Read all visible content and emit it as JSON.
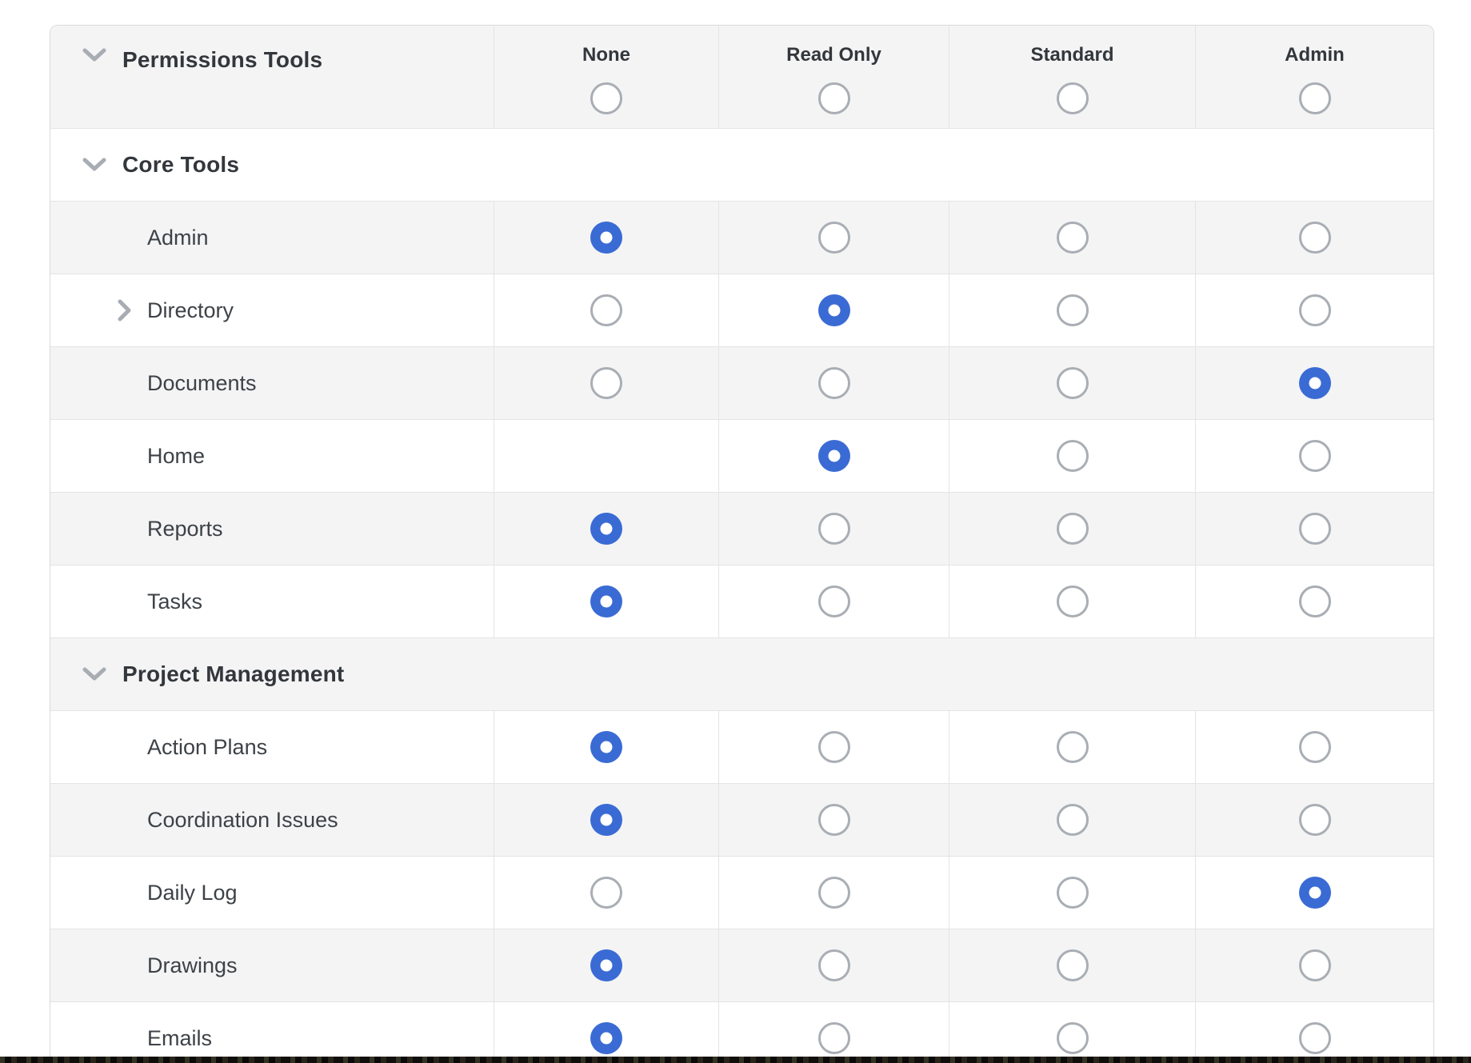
{
  "table": {
    "header": {
      "label": "Permissions Tools",
      "columns": [
        {
          "key": "none",
          "label": "None"
        },
        {
          "key": "read_only",
          "label": "Read Only"
        },
        {
          "key": "standard",
          "label": "Standard"
        },
        {
          "key": "admin",
          "label": "Admin"
        }
      ]
    },
    "sections": [
      {
        "label": "Core Tools",
        "rows": [
          {
            "label": "Admin",
            "permissions": {
              "none": "selected",
              "read_only": "unselected",
              "standard": "unselected",
              "admin": "unselected"
            }
          },
          {
            "label": "Directory",
            "expandable": true,
            "permissions": {
              "none": "unselected",
              "read_only": "selected",
              "standard": "unselected",
              "admin": "unselected"
            }
          },
          {
            "label": "Documents",
            "permissions": {
              "none": "unselected",
              "read_only": "unselected",
              "standard": "unselected",
              "admin": "selected"
            }
          },
          {
            "label": "Home",
            "permissions": {
              "none": "empty",
              "read_only": "selected",
              "standard": "unselected",
              "admin": "unselected"
            }
          },
          {
            "label": "Reports",
            "permissions": {
              "none": "selected",
              "read_only": "unselected",
              "standard": "unselected",
              "admin": "unselected"
            }
          },
          {
            "label": "Tasks",
            "permissions": {
              "none": "selected",
              "read_only": "unselected",
              "standard": "unselected",
              "admin": "unselected"
            }
          }
        ]
      },
      {
        "label": "Project Management",
        "rows": [
          {
            "label": "Action Plans",
            "permissions": {
              "none": "selected",
              "read_only": "unselected",
              "standard": "unselected",
              "admin": "unselected"
            }
          },
          {
            "label": "Coordination Issues",
            "permissions": {
              "none": "selected",
              "read_only": "unselected",
              "standard": "unselected",
              "admin": "unselected"
            }
          },
          {
            "label": "Daily Log",
            "permissions": {
              "none": "unselected",
              "read_only": "unselected",
              "standard": "unselected",
              "admin": "selected"
            }
          },
          {
            "label": "Drawings",
            "permissions": {
              "none": "selected",
              "read_only": "unselected",
              "standard": "unselected",
              "admin": "unselected"
            }
          },
          {
            "label": "Emails",
            "permissions": {
              "none": "selected",
              "read_only": "unselected",
              "standard": "unselected",
              "admin": "unselected"
            }
          }
        ]
      }
    ]
  },
  "icons": {
    "chevron_down": "chevron-down-icon",
    "chevron_right": "chevron-right-icon"
  },
  "colors": {
    "selected_radio": "#3a6bd4",
    "unselected_radio_border": "#a9aeb4",
    "row_stripe": "#f4f4f5",
    "grid_line": "#e3e4e5",
    "table_border": "#d9dadb",
    "text": "#3d4247",
    "heading_text": "#33373c",
    "chevron": "#a8adb3",
    "bottom_strip": "#181713"
  }
}
